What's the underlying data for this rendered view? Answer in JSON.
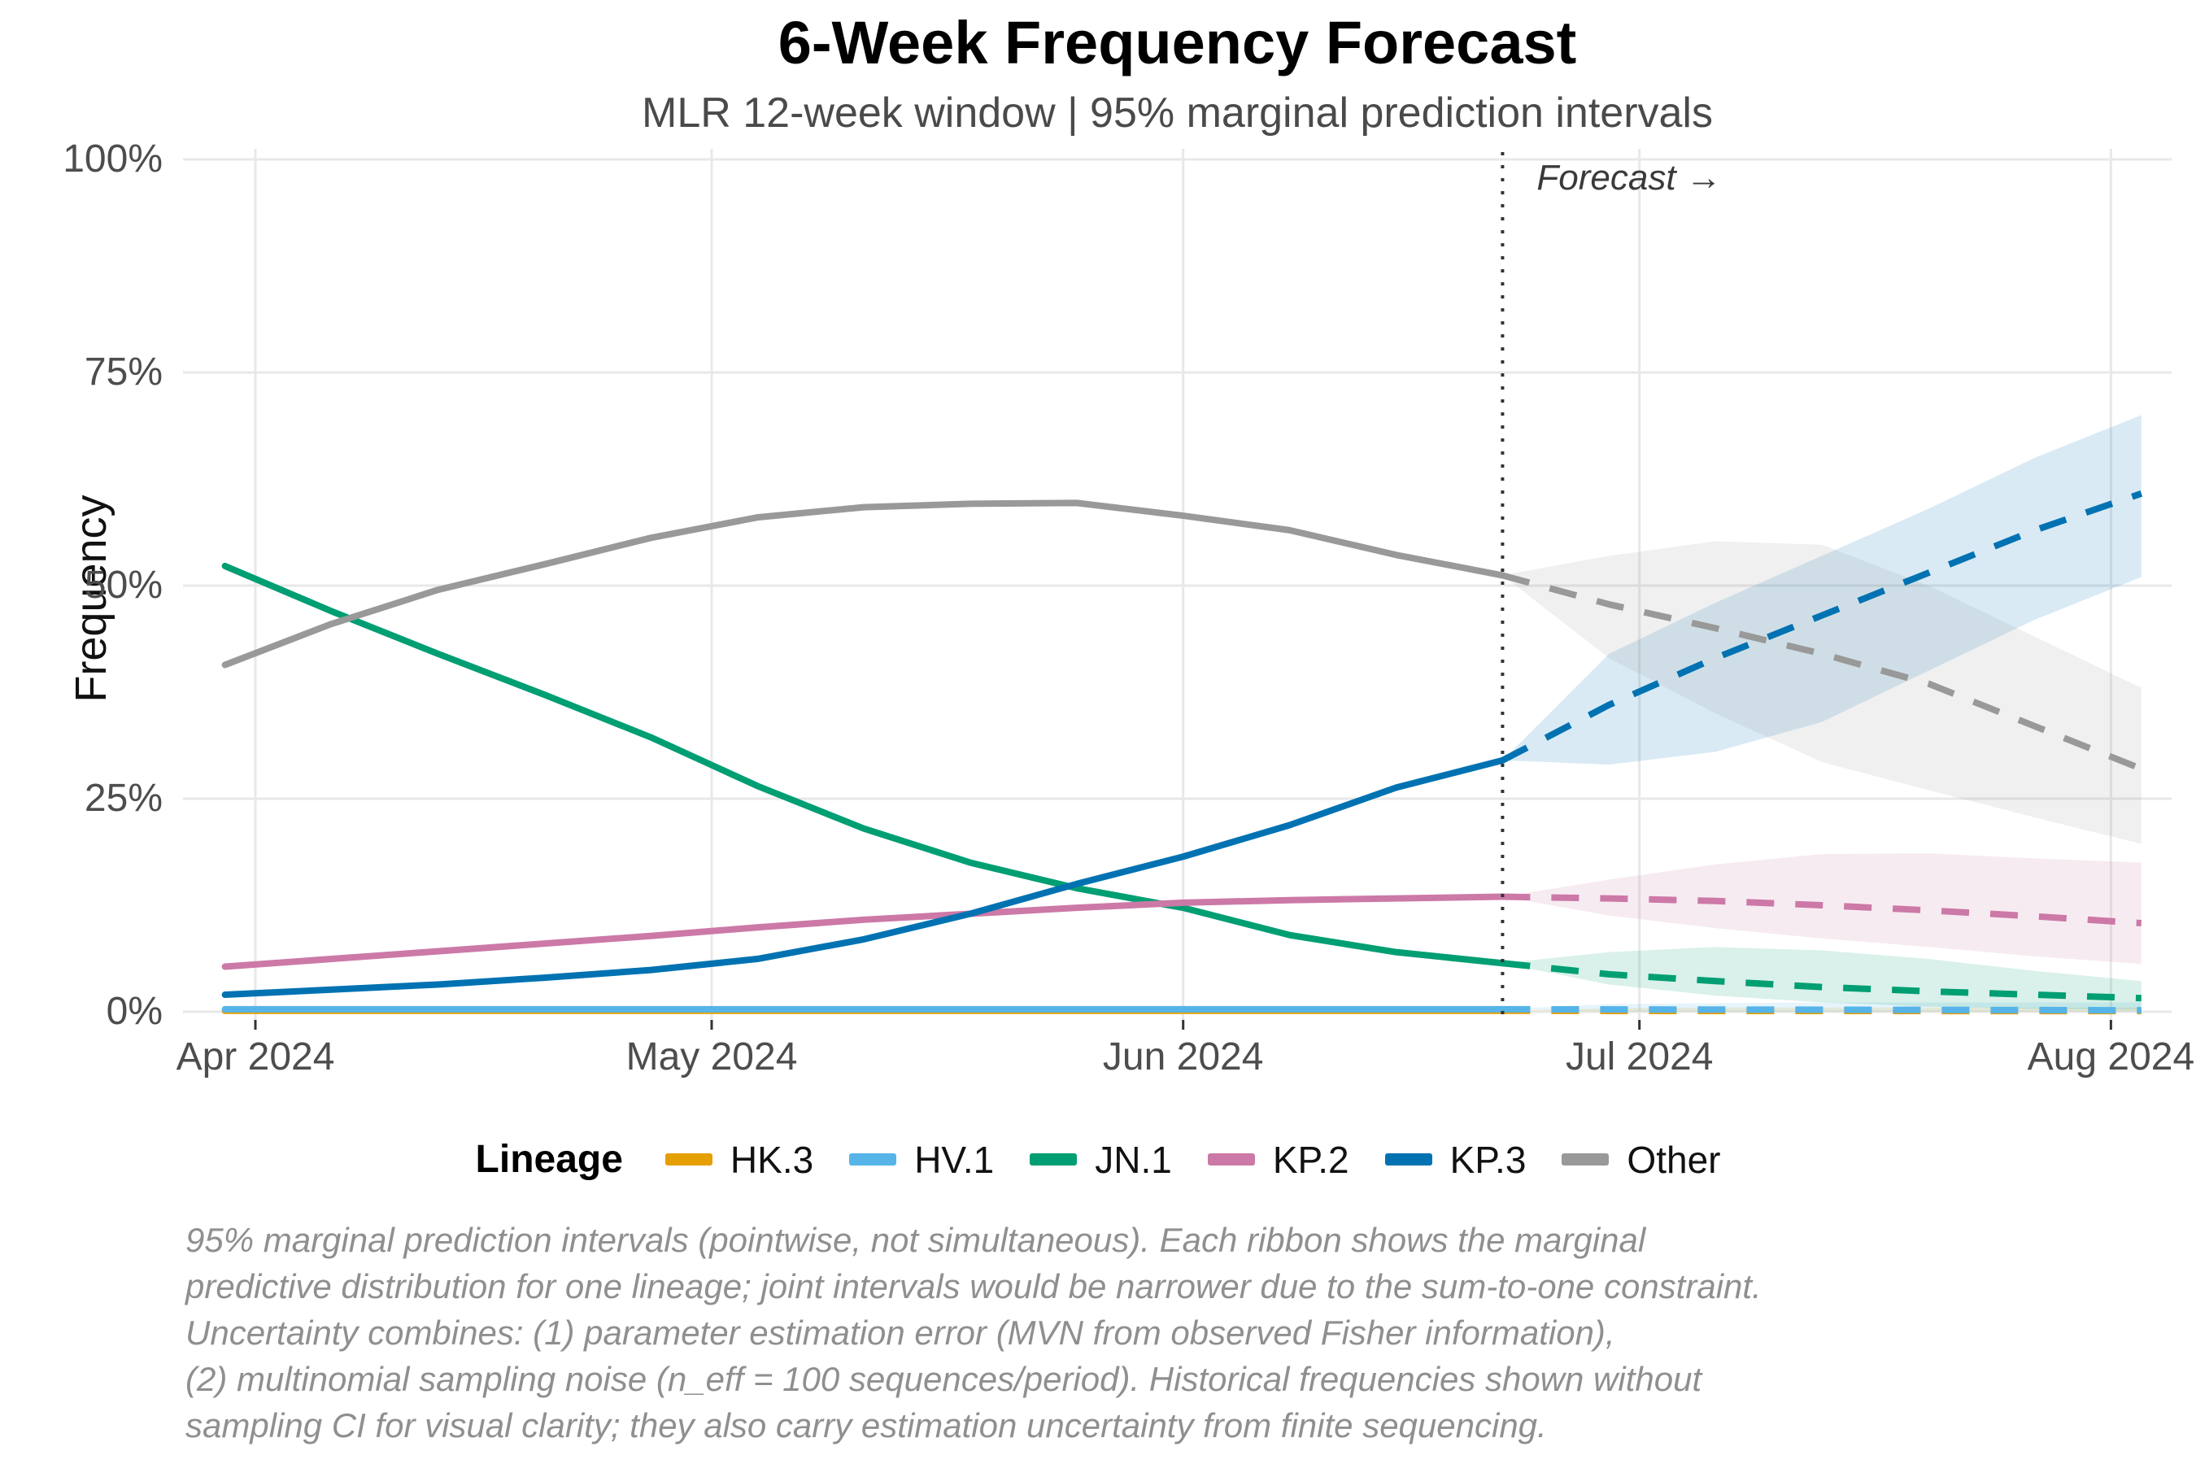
{
  "chart_data": {
    "type": "line",
    "title": "6-Week Frequency Forecast",
    "subtitle": "MLR 12-week window | 95% marginal prediction intervals",
    "ylabel": "Frequency",
    "ylim": [
      0,
      100
    ],
    "grid": "on",
    "legend_position": "bottom",
    "legend_title": "Lineage",
    "forecast_annotation": "Forecast →",
    "forecast_start_day": 82,
    "y_ticks": [
      {
        "value": 0,
        "label": "0%"
      },
      {
        "value": 25,
        "label": "25%"
      },
      {
        "value": 50,
        "label": "50%"
      },
      {
        "value": 75,
        "label": "75%"
      },
      {
        "value": 100,
        "label": "100%"
      }
    ],
    "x_ticks": [
      {
        "day": 0,
        "label": "Apr 2024"
      },
      {
        "day": 30,
        "label": "May 2024"
      },
      {
        "day": 61,
        "label": "Jun 2024"
      },
      {
        "day": 91,
        "label": "Jul 2024"
      },
      {
        "day": 122,
        "label": "Aug 2024"
      }
    ],
    "hist_days": [
      -2,
      5,
      12,
      19,
      26,
      33,
      40,
      47,
      54,
      61,
      68,
      75,
      82
    ],
    "hist_dates": [
      "2024-03-30",
      "2024-04-06",
      "2024-04-13",
      "2024-04-20",
      "2024-04-27",
      "2024-05-04",
      "2024-05-11",
      "2024-05-18",
      "2024-05-25",
      "2024-06-01",
      "2024-06-08",
      "2024-06-15",
      "2024-06-22"
    ],
    "fcst_days": [
      89,
      96,
      103,
      110,
      117,
      124
    ],
    "fcst_dates": [
      "2024-06-29",
      "2024-07-06",
      "2024-07-13",
      "2024-07-20",
      "2024-07-27",
      "2024-08-03"
    ],
    "series": [
      {
        "name": "HK.3",
        "color": "#E69F00",
        "hist": [
          0.12,
          0.12,
          0.12,
          0.12,
          0.12,
          0.12,
          0.12,
          0.12,
          0.12,
          0.12,
          0.12,
          0.12,
          0.12
        ],
        "fcst_mean": [
          0.1,
          0.1,
          0.09,
          0.09,
          0.08,
          0.08
        ],
        "fcst_lo": [
          0.01,
          0.01,
          0.01,
          0.01,
          0.01,
          0.01
        ],
        "fcst_hi": [
          0.4,
          0.5,
          0.5,
          0.5,
          0.5,
          0.5
        ]
      },
      {
        "name": "HV.1",
        "color": "#56B4E9",
        "hist": [
          0.3,
          0.3,
          0.3,
          0.3,
          0.3,
          0.3,
          0.3,
          0.3,
          0.3,
          0.3,
          0.3,
          0.3,
          0.3
        ],
        "fcst_mean": [
          0.28,
          0.26,
          0.24,
          0.22,
          0.2,
          0.18
        ],
        "fcst_lo": [
          0.05,
          0.04,
          0.03,
          0.03,
          0.02,
          0.02
        ],
        "fcst_hi": [
          0.9,
          1.0,
          1.1,
          1.1,
          1.1,
          1.1
        ]
      },
      {
        "name": "JN.1",
        "color": "#009E73",
        "hist": [
          52.3,
          47.0,
          42.0,
          37.2,
          32.2,
          26.5,
          21.5,
          17.5,
          14.5,
          12.2,
          9.0,
          7.0,
          5.7
        ],
        "fcst_mean": [
          4.4,
          3.6,
          2.9,
          2.4,
          2.0,
          1.6
        ],
        "fcst_lo": [
          3.2,
          1.9,
          1.1,
          0.6,
          0.35,
          0.2
        ],
        "fcst_hi": [
          7.0,
          7.6,
          7.2,
          6.2,
          4.8,
          3.6
        ]
      },
      {
        "name": "KP.2",
        "color": "#CC79A7",
        "hist": [
          5.3,
          6.2,
          7.1,
          8.0,
          8.9,
          9.9,
          10.8,
          11.5,
          12.2,
          12.8,
          13.1,
          13.3,
          13.5
        ],
        "fcst_mean": [
          13.3,
          13.0,
          12.5,
          11.9,
          11.2,
          10.4
        ],
        "fcst_lo": [
          11.3,
          9.8,
          8.6,
          7.6,
          6.5,
          5.6
        ],
        "fcst_hi": [
          15.5,
          17.3,
          18.5,
          18.6,
          18.0,
          17.5
        ]
      },
      {
        "name": "KP.3",
        "color": "#0072B2",
        "hist": [
          2.0,
          2.6,
          3.2,
          4.0,
          4.9,
          6.2,
          8.5,
          11.5,
          15.0,
          18.2,
          21.9,
          26.3,
          29.5
        ],
        "fcst_mean": [
          36.0,
          41.5,
          46.5,
          51.5,
          56.5,
          60.8
        ],
        "fcst_lo": [
          29.0,
          30.5,
          34.0,
          40.0,
          46.0,
          51.0
        ],
        "fcst_hi": [
          42.0,
          48.0,
          53.5,
          59.0,
          65.0,
          70.0
        ]
      },
      {
        "name": "Other",
        "color": "#999999",
        "hist": [
          40.7,
          45.5,
          49.5,
          52.5,
          55.6,
          58.0,
          59.2,
          59.6,
          59.7,
          58.2,
          56.5,
          53.6,
          51.2
        ],
        "fcst_mean": [
          47.8,
          45.0,
          42.0,
          38.5,
          33.5,
          28.5
        ],
        "fcst_lo": [
          41.5,
          35.0,
          29.3,
          26.0,
          22.8,
          19.7
        ],
        "fcst_hi": [
          53.5,
          55.2,
          54.8,
          50.0,
          44.0,
          38.0
        ]
      }
    ]
  },
  "caption": {
    "lines": [
      "95% marginal prediction intervals (pointwise, not simultaneous). Each ribbon shows the marginal",
      "predictive distribution for one lineage; joint intervals would be narrower due to the sum-to-one constraint.",
      "Uncertainty combines: (1) parameter estimation error (MVN from observed Fisher information),",
      "(2) multinomial sampling noise (n_eff = 100 sequences/period). Historical frequencies shown without",
      "sampling CI for visual clarity; they also carry estimation uncertainty from finite sequencing."
    ]
  },
  "style_colors": {
    "gridline": "#E8E8E8",
    "divider": "#333333",
    "ribbon_opacity": 0.15
  }
}
